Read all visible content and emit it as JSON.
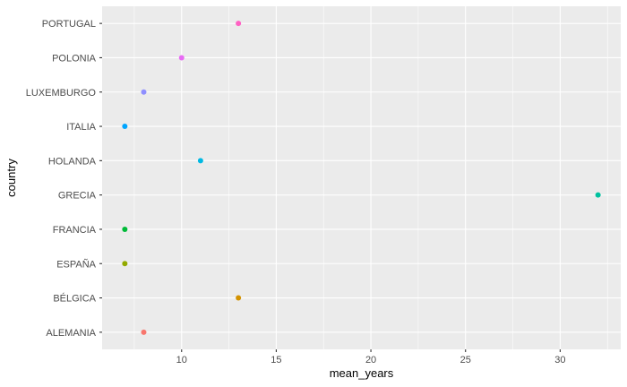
{
  "chart_data": {
    "type": "scatter",
    "xlabel": "mean_years",
    "ylabel": "country",
    "xlim": [
      5.8,
      33.2
    ],
    "x_ticks": [
      10,
      15,
      20,
      25,
      30
    ],
    "x_minor_ticks": [
      7.5,
      12.5,
      17.5,
      22.5,
      27.5,
      32.5
    ],
    "categories": [
      "ALEMANIA",
      "BÉLGICA",
      "ESPAÑA",
      "FRANCIA",
      "GRECIA",
      "HOLANDA",
      "ITALIA",
      "LUXEMBURGO",
      "POLONIA",
      "PORTUGAL"
    ],
    "points": [
      {
        "country": "ALEMANIA",
        "mean_years": 8,
        "color": "#F8766D"
      },
      {
        "country": "BÉLGICA",
        "mean_years": 13,
        "color": "#D39200"
      },
      {
        "country": "ESPAÑA",
        "mean_years": 7,
        "color": "#93AA00"
      },
      {
        "country": "FRANCIA",
        "mean_years": 7,
        "color": "#00BA38"
      },
      {
        "country": "GRECIA",
        "mean_years": 32,
        "color": "#00C19F"
      },
      {
        "country": "HOLANDA",
        "mean_years": 11,
        "color": "#00B9E3"
      },
      {
        "country": "ITALIA",
        "mean_years": 7,
        "color": "#00A5FF"
      },
      {
        "country": "LUXEMBURGO",
        "mean_years": 8,
        "color": "#8F8FFF"
      },
      {
        "country": "POLONIA",
        "mean_years": 10,
        "color": "#E76BF3"
      },
      {
        "country": "PORTUGAL",
        "mean_years": 13,
        "color": "#FF61C3"
      }
    ],
    "grid": true,
    "legend": "none",
    "panel_color": "#EBEBEB",
    "grid_color": "#FFFFFF"
  }
}
